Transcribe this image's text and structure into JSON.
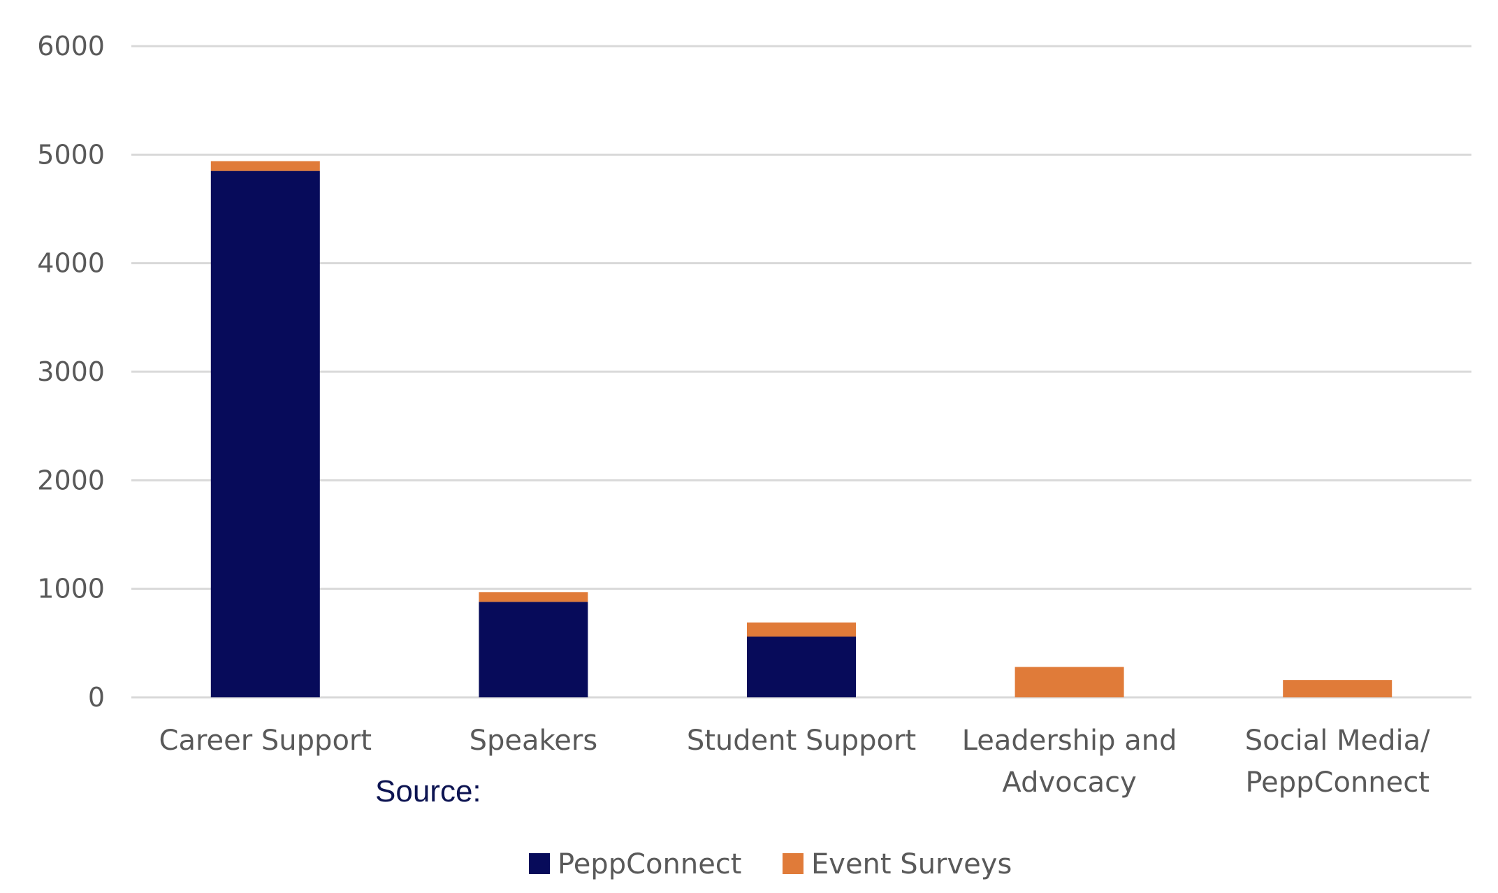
{
  "chart_data": {
    "type": "bar",
    "stacked": true,
    "categories": [
      [
        "Career Support"
      ],
      [
        "Speakers"
      ],
      [
        "Student Support"
      ],
      [
        "Leadership and",
        "Advocacy"
      ],
      [
        "Social Media/",
        "PeppConnect"
      ]
    ],
    "series": [
      {
        "name": "PeppConnect",
        "color": "#070b5a",
        "values": [
          4850,
          880,
          560,
          0,
          0
        ]
      },
      {
        "name": "Event Surveys",
        "color": "#e07b39",
        "values": [
          90,
          90,
          130,
          280,
          160
        ]
      }
    ],
    "ylim": [
      0,
      6000
    ],
    "yticks": [
      "0",
      "1000",
      "2000",
      "3000",
      "4000",
      "5000",
      "6000"
    ],
    "grid": true,
    "legend_position": "bottom",
    "title": "",
    "xlabel": "",
    "ylabel": "",
    "source_label": "Source:"
  }
}
